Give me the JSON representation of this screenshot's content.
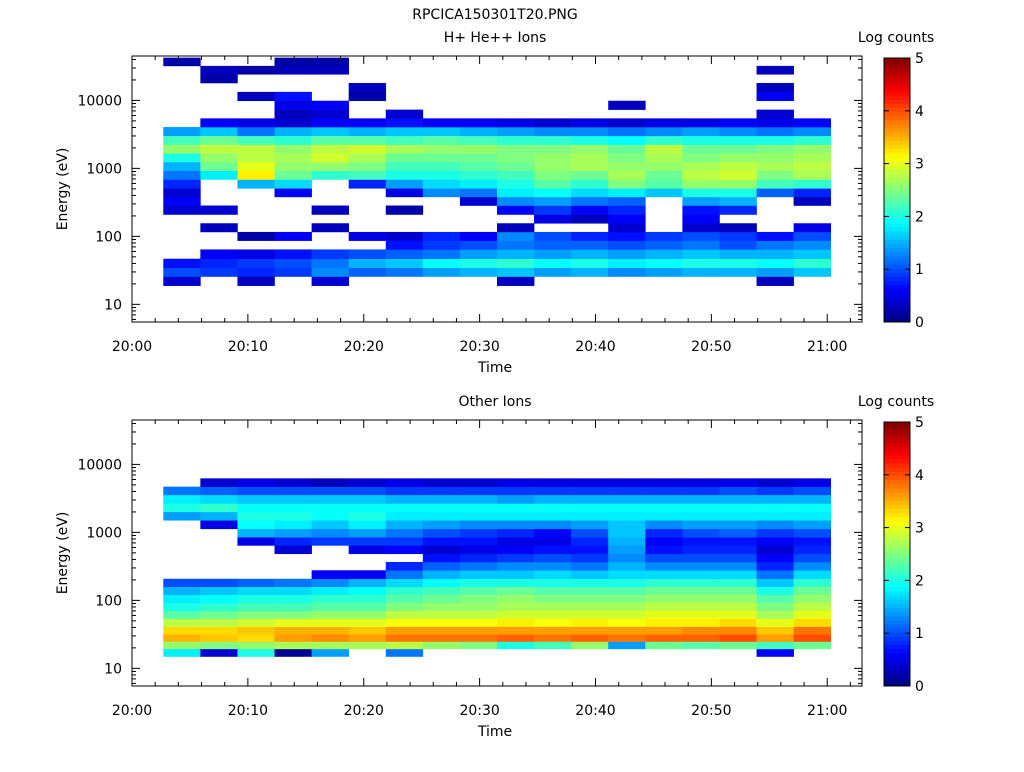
{
  "figure_title": "RPCICA150301T20.PNG",
  "colorbar": {
    "label": "Log counts",
    "ticks": [
      "0",
      "1",
      "2",
      "3",
      "4",
      "5"
    ],
    "range": [
      0,
      5
    ],
    "colormap": "jet"
  },
  "colors": {
    "background": "#ffffff",
    "axis": "#000000"
  },
  "chart_data": [
    {
      "type": "heatmap",
      "title": "H+ He++ Ions",
      "xlabel": "Time",
      "ylabel": "Energy (eV)",
      "x_ticks": [
        "20:00",
        "20:10",
        "20:20",
        "20:30",
        "20:40",
        "20:50",
        "21:00"
      ],
      "y_ticks": [
        "10",
        "100",
        "1000",
        "10000"
      ],
      "y_scale": "log",
      "ylim": [
        5.5,
        45000
      ],
      "xlim_minutes": [
        0,
        63
      ],
      "time_bins_minutes": [
        [
          2.7,
          5.9
        ],
        [
          5.9,
          9.1
        ],
        [
          9.1,
          12.3
        ],
        [
          12.3,
          15.5
        ],
        [
          15.5,
          18.7
        ],
        [
          18.7,
          21.9
        ],
        [
          21.9,
          25.1
        ],
        [
          25.1,
          28.3
        ],
        [
          28.3,
          31.5
        ],
        [
          31.5,
          34.7
        ],
        [
          34.7,
          37.9
        ],
        [
          37.9,
          41.1
        ],
        [
          41.1,
          44.3
        ],
        [
          44.3,
          47.5
        ],
        [
          47.5,
          50.7
        ],
        [
          50.7,
          53.9
        ],
        [
          53.9,
          57.1
        ],
        [
          57.1,
          60.3
        ]
      ],
      "energy_bins_eV": [
        22,
        30,
        40,
        55,
        75,
        100,
        135,
        180,
        245,
        330,
        440,
        590,
        800,
        1070,
        1440,
        1940,
        2600,
        3500,
        4700,
        6300,
        8500,
        11500,
        15500,
        21000,
        28000,
        37000
      ],
      "log_counts": [
        [
          0.4,
          1.0,
          0.7,
          0.0,
          0.0,
          0.0,
          0.0,
          0.0,
          0.4,
          0.6,
          0.4,
          0.8,
          1.2,
          1.5,
          2.0,
          2.6,
          2.2,
          1.4,
          0.0,
          0.0,
          0.0,
          0.0,
          0.0,
          0.0,
          0.0,
          0.2
        ],
        [
          0.0,
          0.9,
          0.8,
          0.6,
          0.0,
          0.0,
          0.3,
          0.0,
          0.4,
          0.0,
          0.0,
          0.0,
          1.8,
          2.4,
          2.6,
          2.8,
          2.4,
          1.6,
          0.6,
          0.0,
          0.0,
          0.0,
          0.0,
          0.2,
          0.3,
          0.0
        ],
        [
          0.3,
          0.8,
          0.9,
          0.5,
          0.0,
          0.2,
          0.0,
          0.0,
          0.0,
          0.0,
          0.0,
          1.5,
          3.2,
          3.0,
          2.8,
          2.8,
          2.2,
          1.2,
          0.5,
          0.0,
          0.0,
          0.3,
          0.0,
          0.0,
          0.2,
          0.0
        ],
        [
          0.0,
          0.9,
          1.0,
          0.7,
          0.0,
          0.6,
          0.0,
          0.0,
          0.0,
          0.0,
          0.6,
          1.7,
          2.4,
          2.6,
          2.7,
          2.6,
          2.1,
          1.5,
          0.4,
          0.3,
          0.5,
          0.7,
          0.0,
          0.0,
          0.3,
          0.2
        ],
        [
          0.4,
          1.3,
          1.2,
          0.9,
          0.0,
          0.0,
          0.3,
          0.0,
          0.3,
          0.0,
          0.0,
          0.0,
          2.1,
          2.6,
          2.9,
          2.8,
          2.3,
          1.6,
          0.6,
          0.4,
          0.6,
          0.0,
          0.0,
          0.0,
          0.3,
          0.2
        ],
        [
          0.0,
          1.1,
          1.5,
          1.0,
          0.0,
          0.5,
          0.0,
          0.0,
          0.0,
          0.0,
          0.0,
          0.8,
          2.2,
          2.5,
          2.7,
          2.9,
          2.3,
          1.5,
          0.6,
          0.0,
          0.0,
          0.2,
          0.3,
          0.0,
          0.0,
          0.0
        ],
        [
          0.0,
          1.2,
          1.6,
          1.1,
          0.7,
          0.4,
          0.0,
          0.0,
          0.2,
          0.0,
          0.5,
          1.4,
          2.0,
          2.2,
          2.4,
          2.7,
          2.2,
          1.6,
          0.7,
          0.4,
          0.0,
          0.0,
          0.0,
          0.0,
          0.0,
          0.0
        ],
        [
          0.0,
          1.4,
          1.9,
          1.2,
          0.9,
          0.8,
          0.0,
          0.0,
          0.0,
          0.0,
          1.3,
          1.7,
          2.0,
          2.2,
          2.4,
          2.6,
          2.3,
          1.6,
          0.6,
          0.0,
          0.0,
          0.0,
          0.0,
          0.0,
          0.0,
          0.0
        ],
        [
          0.0,
          1.5,
          2.0,
          1.4,
          1.0,
          0.6,
          0.0,
          0.0,
          0.0,
          0.4,
          1.2,
          1.8,
          2.1,
          2.3,
          2.4,
          2.6,
          2.2,
          1.5,
          0.6,
          0.0,
          0.0,
          0.0,
          0.0,
          0.0,
          0.0,
          0.0
        ],
        [
          0.3,
          1.6,
          2.1,
          1.5,
          1.2,
          1.3,
          0.3,
          0.0,
          0.6,
          1.3,
          1.8,
          2.0,
          2.2,
          2.4,
          2.5,
          2.5,
          2.1,
          1.4,
          0.5,
          0.0,
          0.0,
          0.0,
          0.0,
          0.0,
          0.0,
          0.0
        ],
        [
          0.0,
          1.4,
          1.9,
          1.4,
          1.1,
          1.0,
          0.0,
          0.5,
          0.9,
          1.4,
          1.9,
          2.3,
          2.5,
          2.6,
          2.6,
          2.5,
          2.1,
          1.3,
          0.4,
          0.0,
          0.0,
          0.0,
          0.0,
          0.0,
          0.0,
          0.0
        ],
        [
          0.0,
          1.5,
          2.0,
          1.5,
          1.1,
          0.8,
          0.0,
          0.3,
          0.6,
          1.2,
          1.7,
          2.1,
          2.4,
          2.7,
          2.7,
          2.6,
          2.0,
          1.3,
          0.5,
          0.0,
          0.0,
          0.0,
          0.0,
          0.0,
          0.0,
          0.0
        ],
        [
          0.0,
          1.3,
          1.8,
          1.4,
          1.0,
          0.7,
          0.4,
          0.6,
          0.8,
          1.1,
          1.8,
          2.5,
          2.7,
          2.6,
          2.5,
          2.4,
          1.9,
          1.2,
          0.4,
          0.0,
          0.3,
          0.0,
          0.0,
          0.0,
          0.0,
          0.0
        ],
        [
          0.0,
          1.4,
          1.9,
          1.5,
          1.1,
          0.9,
          0.0,
          0.0,
          0.0,
          0.0,
          1.6,
          2.3,
          2.4,
          2.6,
          2.7,
          2.8,
          2.1,
          1.3,
          0.5,
          0.0,
          0.0,
          0.0,
          0.0,
          0.0,
          0.0,
          0.0
        ],
        [
          0.0,
          1.5,
          2.0,
          1.6,
          1.2,
          1.0,
          0.4,
          0.6,
          0.7,
          1.4,
          2.0,
          2.6,
          2.8,
          2.7,
          2.5,
          2.4,
          2.0,
          1.4,
          0.5,
          0.0,
          0.0,
          0.0,
          0.0,
          0.0,
          0.0,
          0.0
        ],
        [
          0.0,
          1.5,
          2.0,
          1.5,
          1.0,
          0.9,
          0.3,
          0.0,
          0.8,
          1.5,
          2.0,
          2.6,
          2.9,
          2.8,
          2.6,
          2.4,
          2.0,
          1.3,
          0.6,
          0.0,
          0.0,
          0.0,
          0.0,
          0.0,
          0.0,
          0.0
        ],
        [
          0.3,
          1.4,
          1.9,
          1.5,
          1.2,
          0.7,
          0.0,
          0.0,
          0.0,
          0.0,
          1.1,
          2.2,
          2.5,
          2.7,
          2.6,
          2.5,
          2.0,
          1.2,
          0.5,
          0.4,
          0.0,
          0.6,
          0.3,
          0.0,
          0.3,
          0.0
        ],
        [
          0.0,
          1.6,
          2.1,
          1.6,
          1.3,
          1.0,
          0.5,
          0.0,
          0.0,
          0.3,
          0.8,
          2.1,
          2.7,
          2.8,
          2.7,
          2.6,
          2.1,
          1.3,
          0.6,
          0.0,
          0.0,
          0.0,
          0.0,
          0.0,
          0.0,
          0.0
        ]
      ]
    },
    {
      "type": "heatmap",
      "title": "Other Ions",
      "xlabel": "Time",
      "ylabel": "Energy (eV)",
      "x_ticks": [
        "20:00",
        "20:10",
        "20:20",
        "20:30",
        "20:40",
        "20:50",
        "21:00"
      ],
      "y_ticks": [
        "10",
        "100",
        "1000",
        "10000"
      ],
      "y_scale": "log",
      "ylim": [
        5.5,
        45000
      ],
      "xlim_minutes": [
        0,
        63
      ],
      "time_bins_minutes": [
        [
          2.7,
          5.9
        ],
        [
          5.9,
          9.1
        ],
        [
          9.1,
          12.3
        ],
        [
          12.3,
          15.5
        ],
        [
          15.5,
          18.7
        ],
        [
          18.7,
          21.9
        ],
        [
          21.9,
          25.1
        ],
        [
          25.1,
          28.3
        ],
        [
          28.3,
          31.5
        ],
        [
          31.5,
          34.7
        ],
        [
          34.7,
          37.9
        ],
        [
          37.9,
          41.1
        ],
        [
          41.1,
          44.3
        ],
        [
          44.3,
          47.5
        ],
        [
          47.5,
          50.7
        ],
        [
          50.7,
          53.9
        ],
        [
          53.9,
          57.1
        ],
        [
          57.1,
          60.3
        ]
      ],
      "energy_bins_eV": [
        17,
        22,
        28,
        36,
        47,
        62,
        80,
        105,
        140,
        180,
        240,
        320,
        420,
        560,
        740,
        980,
        1300,
        1750,
        2300,
        3100,
        4100,
        5400,
        7200
      ],
      "log_counts": [
        [
          1.8,
          2.6,
          3.5,
          3.3,
          2.8,
          2.3,
          2.0,
          1.8,
          1.5,
          1.0,
          0.0,
          0.0,
          0.0,
          0.0,
          0.0,
          0.0,
          0.0,
          1.4,
          2.0,
          1.8,
          1.2,
          0.0,
          0.0
        ],
        [
          0.4,
          2.5,
          3.4,
          3.3,
          2.8,
          2.4,
          2.1,
          1.9,
          1.6,
          1.0,
          0.0,
          0.0,
          0.0,
          0.0,
          0.0,
          0.0,
          0.5,
          1.5,
          2.1,
          1.7,
          1.1,
          0.4,
          0.0
        ],
        [
          2.0,
          2.6,
          3.3,
          3.4,
          2.9,
          2.5,
          2.2,
          2.0,
          1.7,
          1.1,
          0.0,
          0.0,
          0.0,
          0.0,
          0.5,
          1.5,
          1.9,
          2.0,
          1.9,
          1.6,
          1.0,
          0.5,
          0.0
        ],
        [
          0.1,
          2.7,
          3.6,
          3.5,
          3.0,
          2.5,
          2.2,
          2.0,
          1.7,
          1.2,
          0.0,
          0.0,
          0.0,
          0.4,
          0.8,
          1.4,
          1.8,
          2.0,
          1.9,
          1.6,
          1.0,
          0.4,
          0.0
        ],
        [
          1.4,
          2.7,
          3.7,
          3.5,
          3.0,
          2.6,
          2.3,
          2.1,
          1.8,
          1.3,
          0.6,
          0.0,
          0.0,
          0.0,
          0.9,
          1.3,
          1.6,
          1.9,
          1.9,
          1.6,
          1.0,
          0.3,
          0.0
        ],
        [
          0.0,
          2.7,
          3.6,
          3.4,
          3.0,
          2.6,
          2.3,
          2.1,
          1.9,
          1.5,
          0.6,
          0.0,
          0.0,
          0.5,
          0.9,
          1.4,
          1.8,
          2.0,
          1.9,
          1.6,
          1.0,
          0.4,
          0.0
        ],
        [
          1.2,
          2.8,
          3.8,
          3.6,
          3.1,
          2.8,
          2.5,
          2.3,
          2.1,
          1.7,
          1.2,
          0.8,
          0.0,
          0.6,
          0.9,
          1.2,
          1.5,
          1.8,
          1.9,
          1.5,
          0.9,
          0.5,
          0.0
        ],
        [
          0.0,
          2.6,
          3.8,
          3.6,
          3.1,
          2.8,
          2.6,
          2.4,
          2.2,
          1.9,
          1.5,
          1.1,
          0.7,
          0.4,
          0.7,
          1.0,
          1.4,
          1.8,
          1.9,
          1.5,
          0.9,
          0.4,
          0.0
        ],
        [
          0.0,
          2.5,
          3.8,
          3.6,
          3.1,
          2.8,
          2.6,
          2.5,
          2.3,
          2.0,
          1.6,
          1.2,
          0.8,
          0.5,
          0.7,
          0.9,
          1.3,
          1.8,
          1.9,
          1.5,
          0.9,
          0.4,
          0.0
        ],
        [
          0.0,
          2.0,
          3.9,
          3.6,
          3.2,
          2.9,
          2.7,
          2.6,
          2.4,
          2.0,
          1.6,
          1.3,
          0.9,
          0.6,
          0.5,
          0.8,
          1.3,
          1.8,
          1.9,
          1.4,
          0.9,
          0.5,
          0.0
        ],
        [
          0.0,
          2.2,
          3.8,
          3.6,
          3.1,
          2.9,
          2.7,
          2.5,
          2.3,
          2.0,
          1.7,
          1.3,
          1.0,
          0.7,
          0.5,
          0.6,
          1.3,
          1.8,
          1.9,
          1.5,
          0.9,
          0.5,
          0.0
        ],
        [
          0.0,
          2.6,
          3.9,
          3.6,
          3.2,
          2.9,
          2.7,
          2.5,
          2.3,
          2.0,
          1.6,
          1.2,
          0.9,
          0.7,
          0.8,
          1.0,
          1.4,
          1.8,
          1.9,
          1.5,
          0.9,
          0.5,
          0.0
        ],
        [
          0.0,
          1.4,
          3.8,
          3.6,
          3.1,
          2.9,
          2.7,
          2.5,
          2.3,
          2.0,
          1.7,
          1.5,
          1.3,
          1.4,
          1.5,
          1.6,
          1.6,
          1.8,
          1.9,
          1.5,
          0.9,
          0.5,
          0.0
        ],
        [
          0.0,
          2.4,
          3.9,
          3.6,
          3.2,
          3.0,
          2.8,
          2.6,
          2.4,
          2.1,
          1.7,
          1.3,
          1.0,
          0.7,
          0.6,
          0.8,
          1.3,
          1.8,
          1.9,
          1.5,
          0.9,
          0.5,
          0.0
        ],
        [
          0.0,
          2.3,
          3.9,
          3.7,
          3.2,
          3.0,
          2.8,
          2.6,
          2.4,
          2.1,
          1.7,
          1.3,
          1.0,
          0.8,
          0.7,
          1.0,
          1.4,
          1.8,
          1.9,
          1.5,
          0.9,
          0.5,
          0.0
        ],
        [
          0.0,
          2.4,
          4.0,
          3.7,
          3.3,
          3.0,
          2.8,
          2.6,
          2.4,
          2.1,
          1.7,
          1.3,
          1.0,
          0.8,
          0.7,
          1.1,
          1.4,
          1.8,
          1.9,
          1.5,
          1.0,
          0.5,
          0.0
        ],
        [
          0.6,
          2.2,
          3.6,
          3.4,
          3.0,
          2.7,
          2.5,
          2.3,
          2.0,
          1.6,
          1.2,
          0.8,
          0.6,
          0.4,
          0.6,
          0.9,
          1.3,
          1.8,
          1.9,
          1.5,
          0.9,
          0.4,
          0.0
        ],
        [
          0.0,
          2.4,
          4.0,
          3.8,
          3.3,
          3.0,
          2.8,
          2.6,
          2.4,
          2.1,
          1.7,
          1.3,
          1.0,
          0.8,
          0.7,
          1.0,
          1.4,
          1.8,
          1.9,
          1.5,
          1.0,
          0.5,
          0.0
        ]
      ]
    }
  ]
}
